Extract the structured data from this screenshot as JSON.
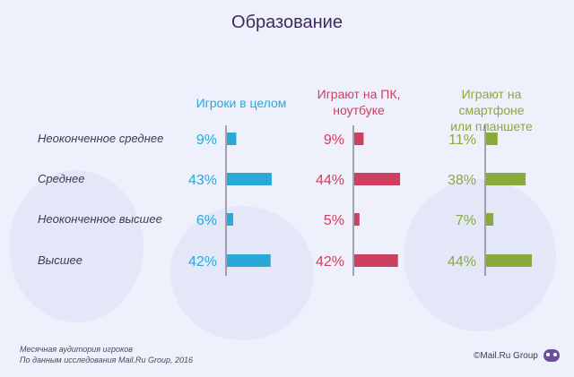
{
  "title": "Образование",
  "colors": {
    "players": "#2aa8d8",
    "pc": "#cc3f60",
    "mobile": "#8aaa3c"
  },
  "chart_data": {
    "type": "bar",
    "title": "Образование",
    "categories": [
      "Неоконченное среднее",
      "Среднее",
      "Неоконченное высшее",
      "Высшее"
    ],
    "series": [
      {
        "name": "Игроки в целом",
        "values": [
          9,
          43,
          6,
          42
        ],
        "labels": [
          "9%",
          "43%",
          "6%",
          "42%"
        ]
      },
      {
        "name": "Играют на ПК, ноутбуке",
        "values": [
          9,
          44,
          5,
          42
        ],
        "labels": [
          "9%",
          "44%",
          "5%",
          "42%"
        ]
      },
      {
        "name": "Играют на смартфоне или планшете",
        "values": [
          11,
          38,
          7,
          44
        ],
        "labels": [
          "11%",
          "38%",
          "7%",
          "44%"
        ]
      }
    ],
    "unit": "%"
  },
  "headers": {
    "players": "Игроки в целом",
    "pc_line1": "Играют на ПК,",
    "pc_line2": "ноутбуке",
    "mobile_line1": "Играют на смартфоне",
    "mobile_line2": "или планшете"
  },
  "footer": {
    "line1": "Месячная аудитория игроков",
    "line2": "По данным исследования Mail.Ru Group, 2016"
  },
  "brand": "©Mail.Ru Group"
}
